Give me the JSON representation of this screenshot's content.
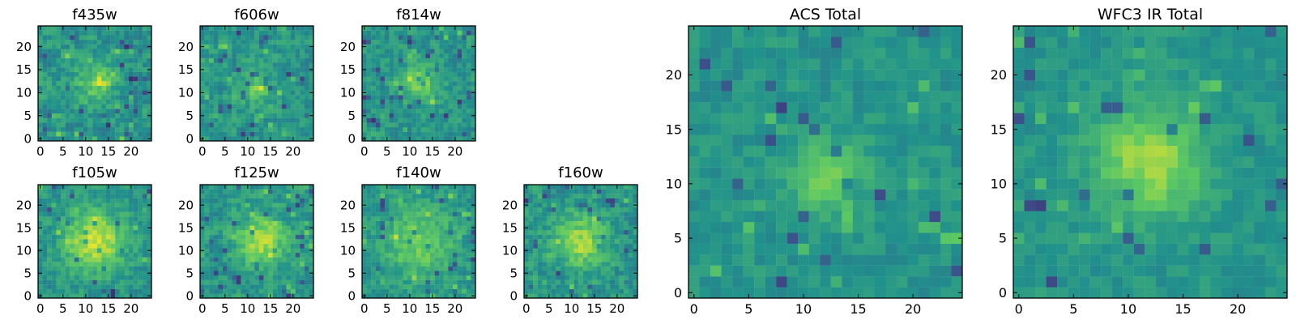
{
  "figure": {
    "description_domain": "astronomy image cutouts"
  },
  "colors": {
    "background": "#ffffff",
    "axis": "#000000",
    "viridis_stops": [
      "#440154",
      "#3b528b",
      "#21918c",
      "#5ec962",
      "#fde725"
    ]
  },
  "chart_data": [
    {
      "type": "heatmap",
      "title": "f435w",
      "xlabel": "",
      "ylabel": "",
      "xlim": [
        -0.5,
        24.5
      ],
      "ylim": [
        -0.5,
        24.5
      ],
      "xticks": [
        0,
        5,
        10,
        15,
        20
      ],
      "yticks": [
        0,
        5,
        10,
        15,
        20
      ],
      "grid_size": 25,
      "center": [
        12,
        12
      ],
      "source_strength": 0.24,
      "source_radius": 3.2,
      "noise": 0.28,
      "seed": 435,
      "cmap": "viridis"
    },
    {
      "type": "heatmap",
      "title": "f606w",
      "xlabel": "",
      "ylabel": "",
      "xlim": [
        -0.5,
        24.5
      ],
      "ylim": [
        -0.5,
        24.5
      ],
      "xticks": [
        0,
        5,
        10,
        15,
        20
      ],
      "yticks": [
        0,
        5,
        10,
        15,
        20
      ],
      "grid_size": 25,
      "center": [
        12,
        11
      ],
      "source_strength": 0.25,
      "source_radius": 2.4,
      "noise": 0.25,
      "seed": 606,
      "cmap": "viridis"
    },
    {
      "type": "heatmap",
      "title": "f814w",
      "xlabel": "",
      "ylabel": "",
      "xlim": [
        -0.5,
        24.5
      ],
      "ylim": [
        -0.5,
        24.5
      ],
      "xticks": [
        0,
        5,
        10,
        15,
        20
      ],
      "yticks": [
        0,
        5,
        10,
        15,
        20
      ],
      "grid_size": 25,
      "center": [
        12,
        12
      ],
      "source_strength": 0.3,
      "source_radius": 2.8,
      "noise": 0.25,
      "seed": 814,
      "cmap": "viridis"
    },
    {
      "type": "heatmap",
      "title": "f105w",
      "xlabel": "",
      "ylabel": "",
      "xlim": [
        -0.5,
        24.5
      ],
      "ylim": [
        -0.5,
        24.5
      ],
      "xticks": [
        0,
        5,
        10,
        15,
        20
      ],
      "yticks": [
        0,
        5,
        10,
        15,
        20
      ],
      "grid_size": 25,
      "center": [
        12,
        12
      ],
      "source_strength": 0.42,
      "source_radius": 4.5,
      "noise": 0.24,
      "seed": 105,
      "cmap": "viridis"
    },
    {
      "type": "heatmap",
      "title": "f125w",
      "xlabel": "",
      "ylabel": "",
      "xlim": [
        -0.5,
        24.5
      ],
      "ylim": [
        -0.5,
        24.5
      ],
      "xticks": [
        0,
        5,
        10,
        15,
        20
      ],
      "yticks": [
        0,
        5,
        10,
        15,
        20
      ],
      "grid_size": 25,
      "center": [
        13,
        12
      ],
      "source_strength": 0.35,
      "source_radius": 4,
      "noise": 0.26,
      "seed": 125,
      "cmap": "viridis"
    },
    {
      "type": "heatmap",
      "title": "f140w",
      "xlabel": "",
      "ylabel": "",
      "xlim": [
        -0.5,
        24.5
      ],
      "ylim": [
        -0.5,
        24.5
      ],
      "xticks": [
        0,
        5,
        10,
        15,
        20
      ],
      "yticks": [
        0,
        5,
        10,
        15,
        20
      ],
      "grid_size": 25,
      "center": [
        12,
        12
      ],
      "source_strength": 0.25,
      "source_radius": 5.5,
      "noise": 0.24,
      "seed": 140,
      "cmap": "viridis"
    },
    {
      "type": "heatmap",
      "title": "f160w",
      "xlabel": "",
      "ylabel": "",
      "xlim": [
        -0.5,
        24.5
      ],
      "ylim": [
        -0.5,
        24.5
      ],
      "xticks": [
        0,
        5,
        10,
        15,
        20
      ],
      "yticks": [
        0,
        5,
        10,
        15,
        20
      ],
      "grid_size": 25,
      "center": [
        12,
        12
      ],
      "source_strength": 0.32,
      "source_radius": 4.2,
      "noise": 0.27,
      "seed": 160,
      "cmap": "viridis"
    },
    {
      "type": "heatmap",
      "title": "ACS Total",
      "xlabel": "",
      "ylabel": "",
      "xlim": [
        -0.5,
        24.5
      ],
      "ylim": [
        -0.5,
        24.5
      ],
      "xticks": [
        0,
        5,
        10,
        15,
        20
      ],
      "yticks": [
        0,
        5,
        10,
        15,
        20
      ],
      "grid_size": 25,
      "center": [
        12,
        11
      ],
      "source_strength": 0.32,
      "source_radius": 2.2,
      "noise": 0.18,
      "seed": 9001,
      "cmap": "viridis"
    },
    {
      "type": "heatmap",
      "title": "WFC3 IR Total",
      "xlabel": "",
      "ylabel": "",
      "xlim": [
        -0.5,
        24.5
      ],
      "ylim": [
        -0.5,
        24.5
      ],
      "xticks": [
        0,
        5,
        10,
        15,
        20
      ],
      "yticks": [
        0,
        5,
        10,
        15,
        20
      ],
      "grid_size": 25,
      "center": [
        12,
        12
      ],
      "source_strength": 0.34,
      "source_radius": 3.6,
      "noise": 0.16,
      "seed": 9002,
      "cmap": "viridis"
    }
  ]
}
